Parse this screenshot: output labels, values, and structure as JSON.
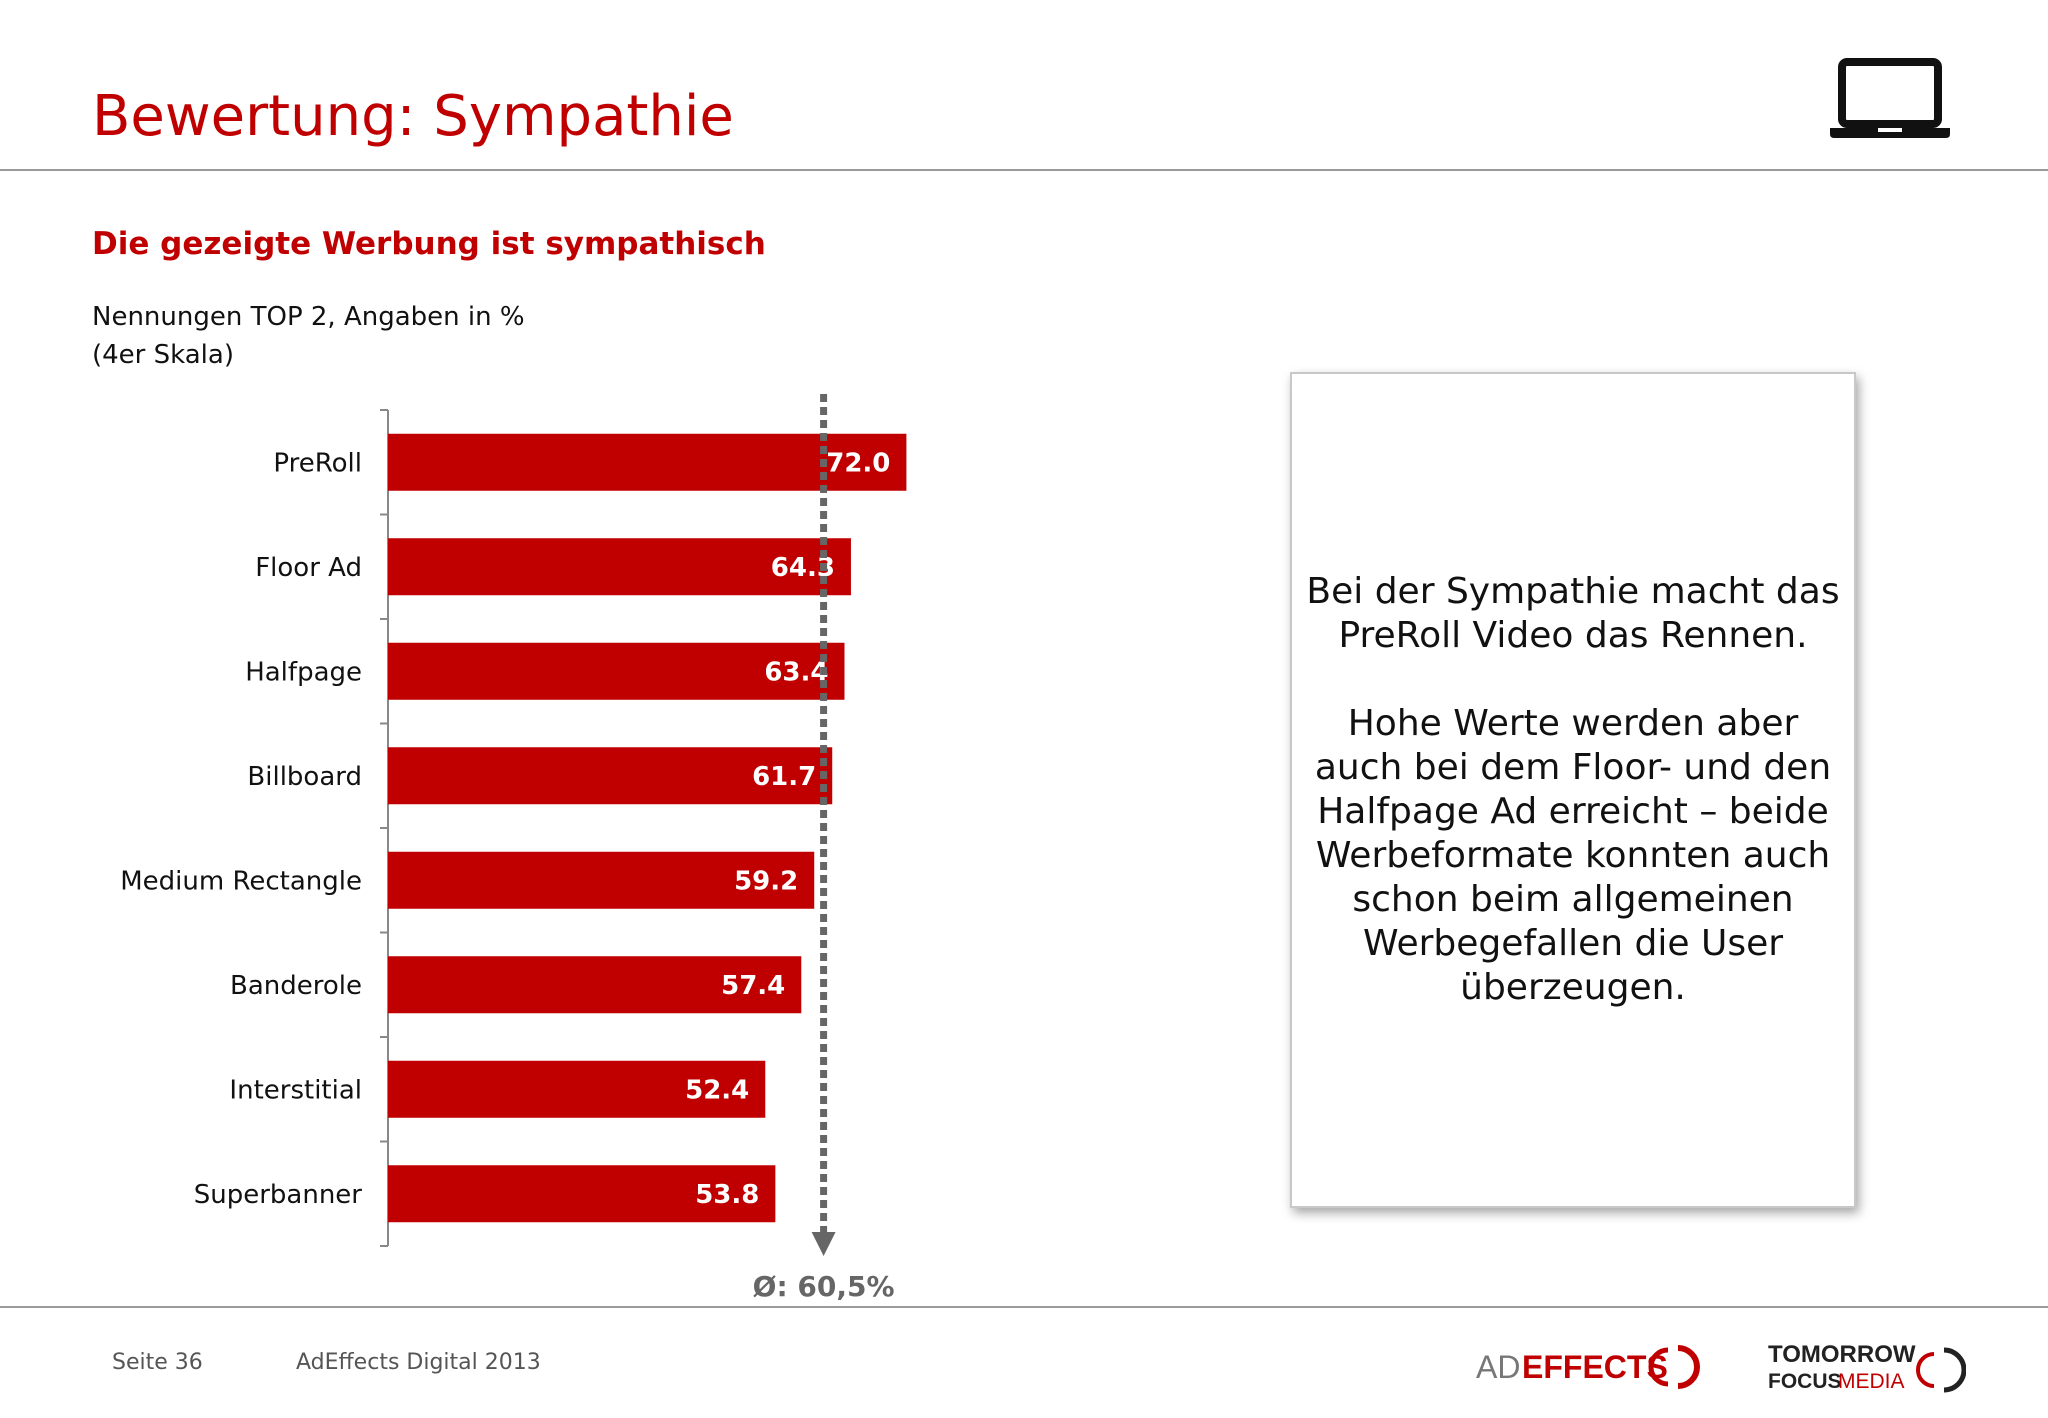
{
  "header": {
    "title": "Bewertung: Sympathie",
    "icon": "laptop-icon"
  },
  "chart_data": {
    "type": "bar",
    "orientation": "horizontal",
    "title": "Die gezeigte Werbung ist sympathisch",
    "subtitle_lines": [
      "Nennungen TOP 2, Angaben in %",
      "(4er Skala)"
    ],
    "categories": [
      "PreRoll",
      "Floor Ad",
      "Halfpage",
      "Billboard",
      "Medium Rectangle",
      "Banderole",
      "Interstitial",
      "Superbanner"
    ],
    "values": [
      72.0,
      64.3,
      63.4,
      61.7,
      59.2,
      57.4,
      52.4,
      53.8
    ],
    "value_labels": [
      "72.0",
      "64.3",
      "63.4",
      "61.7",
      "59.2",
      "57.4",
      "52.4",
      "53.8"
    ],
    "average": {
      "value": 60.5,
      "label": "Ø: 60,5%"
    },
    "xlim": [
      0,
      100
    ],
    "grid": false,
    "colors": {
      "bar": "#c00000",
      "average_line": "#666666",
      "bar_label": "#ffffff"
    }
  },
  "callout": {
    "paragraphs": [
      "Bei der Sympathie macht das PreRoll Video das Rennen.",
      "Hohe Werte werden aber auch bei dem Floor- und den Halfpage Ad erreicht – beide Werbeformate konnten auch schon beim allgemeinen Werbegefallen die User überzeugen."
    ]
  },
  "footer": {
    "page": "Seite 36",
    "source": "AdEffects Digital 2013",
    "logo_adeffects": {
      "text_ad": "AD",
      "text_effects": "EFFECTS"
    },
    "logo_tfm": {
      "line1": "TOMORROW",
      "line2a": "FOCUS",
      "line2b": "MEDIA"
    }
  },
  "colors": {
    "accent": "#c00000",
    "rule": "#9a9a9a"
  }
}
